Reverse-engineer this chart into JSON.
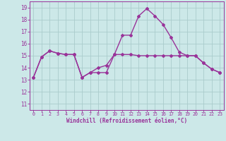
{
  "xlabel": "Windchill (Refroidissement éolien,°C)",
  "x_values": [
    0,
    1,
    2,
    3,
    4,
    5,
    6,
    7,
    8,
    9,
    10,
    11,
    12,
    13,
    14,
    15,
    16,
    17,
    18,
    19,
    20,
    21,
    22,
    23
  ],
  "line1_y": [
    13.2,
    14.9,
    15.4,
    15.2,
    15.1,
    15.1,
    13.2,
    13.6,
    14.0,
    14.2,
    15.1,
    16.7,
    16.7,
    18.3,
    18.9,
    18.3,
    17.6,
    16.5,
    15.3,
    15.0,
    15.0,
    14.4,
    13.9,
    13.6
  ],
  "line2_y": [
    13.2,
    14.9,
    15.4,
    15.2,
    15.1,
    15.1,
    13.2,
    13.6,
    13.6,
    13.6,
    15.1,
    15.1,
    15.1,
    15.0,
    15.0,
    15.0,
    15.0,
    15.0,
    15.0,
    15.0,
    15.0,
    14.4,
    13.9,
    13.6
  ],
  "line_color": "#993399",
  "background_color": "#cce8e8",
  "grid_color": "#aacccc",
  "ylim": [
    10.5,
    19.5
  ],
  "xlim": [
    -0.5,
    23.5
  ],
  "yticks": [
    11,
    12,
    13,
    14,
    15,
    16,
    17,
    18,
    19
  ],
  "xtick_labels": [
    "0",
    "1",
    "2",
    "3",
    "4",
    "5",
    "6",
    "7",
    "8",
    "9",
    "10",
    "11",
    "12",
    "13",
    "14",
    "15",
    "16",
    "17",
    "18",
    "19",
    "20",
    "21",
    "22",
    "23"
  ],
  "marker": "D",
  "marker_size": 2.0,
  "line_width": 1.0
}
